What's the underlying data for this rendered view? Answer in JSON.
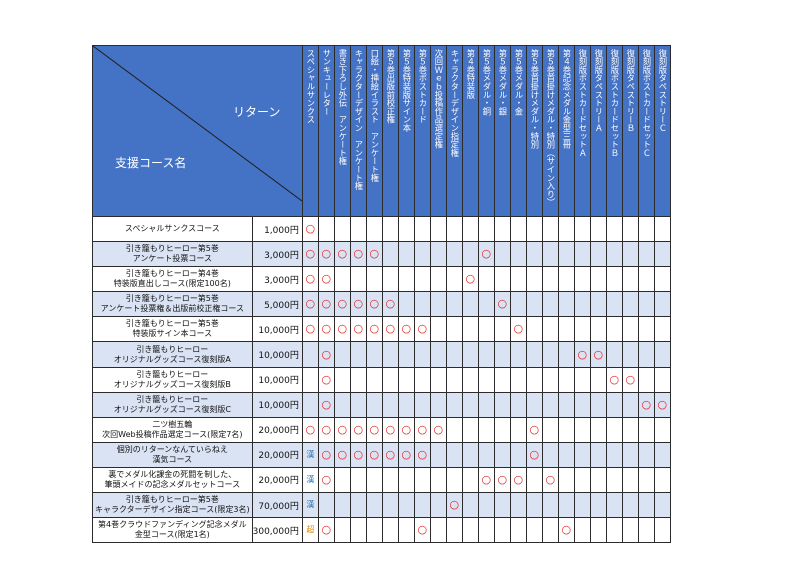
{
  "header": {
    "return_label": "リターン",
    "course_label": "支援コース名",
    "returns": [
      "スペシャルサンクス",
      "サンキューレター",
      "書き下ろし外伝　アンケート権",
      "キャラクターデザイン　アンケート権",
      "口絵・挿絵イラスト　アンケート権",
      "第５巻出版前校正権",
      "第５巻特装版サイン本",
      "第５巻ポストカード",
      "次回Ｗｅｂ投稿作品選定権",
      "キャラクターデザイン指定権",
      "第４巻特装版",
      "第５巻メダル・銅",
      "第５巻メダル・銀",
      "第５巻メダル・金",
      "第５巻首掛けメダル・特別",
      "第５巻首掛けメダル・特別（サイン入り）",
      "第４巻記念メダル金型三冊",
      "復刻版ポストカードセットＡ",
      "復刻版タペストリーＡ",
      "復刻版ポストカードセットＢ",
      "復刻版タペストリーＢ",
      "復刻版ポストカードセットＣ",
      "復刻版タペストリーＣ"
    ]
  },
  "rows": [
    {
      "name": [
        "スペシャルサンクスコース"
      ],
      "price": "1,000円",
      "cells": [
        "○",
        "",
        "",
        "",
        "",
        "",
        "",
        "",
        "",
        "",
        "",
        "",
        "",
        "",
        "",
        "",
        "",
        "",
        "",
        "",
        "",
        "",
        ""
      ]
    },
    {
      "name": [
        "引き籠もりヒーロー第5巻",
        "アンケート投票コース"
      ],
      "price": "3,000円",
      "cells": [
        "○",
        "○",
        "○",
        "○",
        "○",
        "",
        "",
        "",
        "",
        "",
        "",
        "○",
        "",
        "",
        "",
        "",
        "",
        "",
        "",
        "",
        "",
        "",
        ""
      ]
    },
    {
      "name": [
        "引き籠もりヒーロー第4巻",
        "特装版直出しコース(限定100名)"
      ],
      "price": "3,000円",
      "cells": [
        "○",
        "○",
        "",
        "",
        "",
        "",
        "",
        "",
        "",
        "",
        "○",
        "",
        "",
        "",
        "",
        "",
        "",
        "",
        "",
        "",
        "",
        "",
        ""
      ]
    },
    {
      "name": [
        "引き籠もりヒーロー第5巻",
        "アンケート投票権＆出版前校正権コース"
      ],
      "price": "5,000円",
      "cells": [
        "○",
        "○",
        "○",
        "○",
        "○",
        "○",
        "",
        "",
        "",
        "",
        "",
        "",
        "○",
        "",
        "",
        "",
        "",
        "",
        "",
        "",
        "",
        "",
        ""
      ]
    },
    {
      "name": [
        "引き籠もりヒーロー第5巻",
        "特装版サイン本コース"
      ],
      "price": "10,000円",
      "cells": [
        "○",
        "○",
        "○",
        "○",
        "○",
        "○",
        "○",
        "○",
        "",
        "",
        "",
        "",
        "",
        "○",
        "",
        "",
        "",
        "",
        "",
        "",
        "",
        "",
        ""
      ]
    },
    {
      "name": [
        "引き籠もりヒーロー",
        "オリジナルグッズコース復刻版A"
      ],
      "price": "10,000円",
      "cells": [
        "",
        "○",
        "",
        "",
        "",
        "",
        "",
        "",
        "",
        "",
        "",
        "",
        "",
        "",
        "",
        "",
        "",
        "○",
        "○",
        "",
        "",
        "",
        ""
      ]
    },
    {
      "name": [
        "引き籠もりヒーロー",
        "オリジナルグッズコース復刻版B"
      ],
      "price": "10,000円",
      "cells": [
        "",
        "○",
        "",
        "",
        "",
        "",
        "",
        "",
        "",
        "",
        "",
        "",
        "",
        "",
        "",
        "",
        "",
        "",
        "",
        "○",
        "○",
        "",
        ""
      ]
    },
    {
      "name": [
        "引き籠もりヒーロー",
        "オリジナルグッズコース復刻版C"
      ],
      "price": "10,000円",
      "cells": [
        "",
        "○",
        "",
        "",
        "",
        "",
        "",
        "",
        "",
        "",
        "",
        "",
        "",
        "",
        "",
        "",
        "",
        "",
        "",
        "",
        "",
        "○",
        "○"
      ]
    },
    {
      "name": [
        "二ツ樹五輪",
        "次回Web投稿作品選定コース(限定7名)"
      ],
      "price": "20,000円",
      "cells": [
        "○",
        "○",
        "○",
        "○",
        "○",
        "○",
        "○",
        "○",
        "○",
        "",
        "",
        "",
        "",
        "",
        "○",
        "",
        "",
        "",
        "",
        "",
        "",
        "",
        ""
      ]
    },
    {
      "name": [
        "個別のリターンなんていらねえ",
        "漢気コース"
      ],
      "price": "20,000円",
      "cells": [
        "漢",
        "○",
        "○",
        "○",
        "○",
        "○",
        "○",
        "○",
        "",
        "",
        "",
        "",
        "",
        "",
        "○",
        "",
        "",
        "",
        "",
        "",
        "",
        "",
        ""
      ]
    },
    {
      "name": [
        "裏でメダル化課金の死闘を制した、",
        "筆頭メイドの記念メダルセットコース"
      ],
      "price": "20,000円",
      "cells": [
        "漢",
        "○",
        "",
        "",
        "",
        "",
        "",
        "",
        "",
        "",
        "",
        "○",
        "○",
        "○",
        "",
        "○",
        "",
        "",
        "",
        "",
        "",
        "",
        ""
      ]
    },
    {
      "name": [
        "引き籠もりヒーロー第5巻",
        "キャラクターデザイン指定コース(限定3名)"
      ],
      "price": "70,000円",
      "cells": [
        "漢",
        "",
        "",
        "",
        "",
        "",
        "",
        "",
        "",
        "○",
        "",
        "",
        "",
        "",
        "",
        "",
        "",
        "",
        "",
        "",
        "",
        "",
        ""
      ]
    },
    {
      "name": [
        "第4巻クラウドファンディング記念メダル",
        "金型コース(限定1名)"
      ],
      "price": "300,000円",
      "cells": [
        "超",
        "○",
        "",
        "",
        "",
        "",
        "",
        "○",
        "",
        "",
        "",
        "",
        "",
        "",
        "",
        "",
        "○",
        "",
        "",
        "",
        "",
        "",
        ""
      ]
    }
  ]
}
